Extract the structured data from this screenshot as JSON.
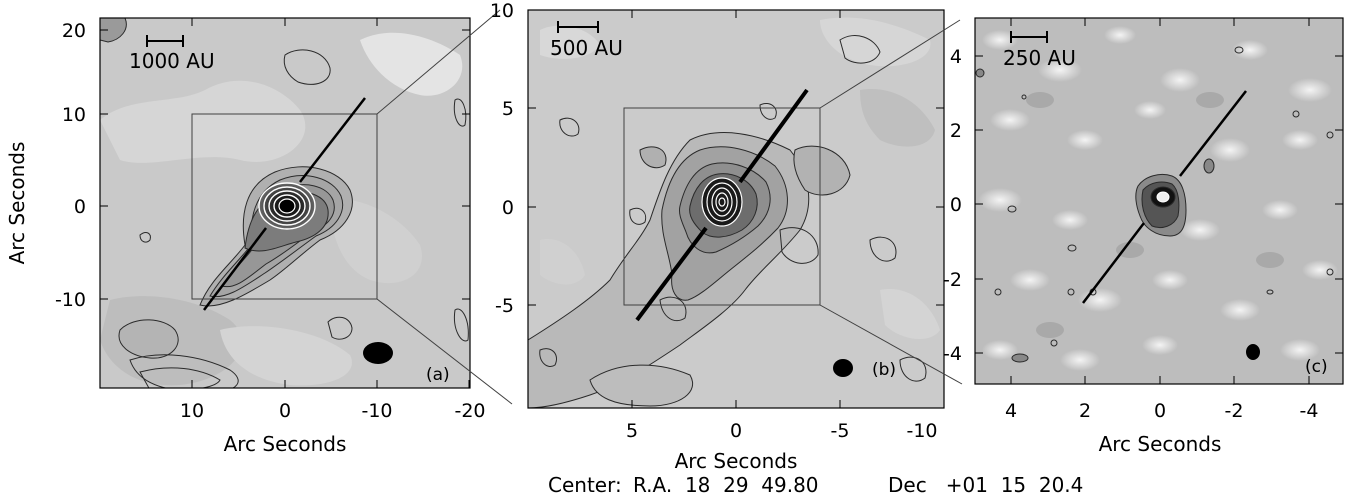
{
  "figure": {
    "center": {
      "prefix": "Center:",
      "ra": "R.A.  18  29  49.80",
      "dec": "Dec   +01  15  20.4"
    }
  },
  "panels": [
    {
      "id": "a",
      "tag": "(a)",
      "scale_bar": "1000 AU",
      "xlabel": "Arc Seconds",
      "ylabel": "Arc Seconds",
      "x_ticks": [
        "10",
        "0",
        "-10",
        "-20"
      ],
      "y_ticks": [
        "20",
        "10",
        "0",
        "-10"
      ],
      "x_range": [
        20,
        -20
      ],
      "y_range": [
        -20,
        20
      ],
      "inset_box": [
        10,
        -10,
        10,
        -10
      ],
      "outflow_axis": [
        [
          9,
          -11
        ],
        [
          -9,
          12
        ]
      ]
    },
    {
      "id": "b",
      "tag": "(b)",
      "scale_bar": "500 AU",
      "xlabel": "Arc Seconds",
      "ylabel": "",
      "x_ticks": [
        "5",
        "0",
        "-5",
        "-10"
      ],
      "y_ticks": [
        "10",
        "5",
        "0",
        "-5"
      ],
      "x_range": [
        10,
        -10
      ],
      "y_range": [
        -10,
        10
      ],
      "inset_box": [
        5,
        -5,
        5,
        -5
      ],
      "outflow_axis": [
        [
          4.9,
          -5.6
        ],
        [
          -4.1,
          5.9
        ]
      ]
    },
    {
      "id": "c",
      "tag": "(c)",
      "scale_bar": "250 AU",
      "xlabel": "Arc Seconds",
      "ylabel": "",
      "x_ticks": [
        "4",
        "2",
        "0",
        "-2",
        "-4"
      ],
      "y_ticks": [
        "4",
        "2",
        "0",
        "-2",
        "-4"
      ],
      "x_range": [
        5,
        -5
      ],
      "y_range": [
        -5,
        5
      ],
      "outflow_axis": [
        [
          2.1,
          -2.7
        ],
        [
          -1.8,
          3.1
        ]
      ]
    }
  ],
  "colors": {
    "map_background": "#c9c9c9",
    "panel_c_background": "#bdbdbd",
    "contour": "#2a2a2a",
    "inner_contour": "#ffffff",
    "beam": "#000000"
  }
}
